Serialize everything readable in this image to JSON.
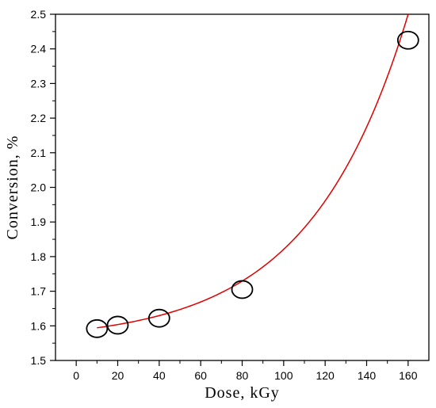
{
  "chart_data": {
    "type": "scatter",
    "title": "",
    "xlabel": "Dose, kGy",
    "ylabel": "Conversion, %",
    "xlim": [
      -10,
      170
    ],
    "ylim": [
      1.5,
      2.5
    ],
    "xticks": [
      0,
      20,
      40,
      60,
      80,
      100,
      120,
      140,
      160
    ],
    "yticks": [
      1.5,
      1.6,
      1.7,
      1.8,
      1.9,
      2.0,
      2.1,
      2.2,
      2.3,
      2.4,
      2.5
    ],
    "ytick_labels": [
      "1.5",
      "1.6",
      "1.7",
      "1.8",
      "1.9",
      "2.0",
      "2.1",
      "2.2",
      "2.3",
      "2.4",
      "2.5"
    ],
    "grid": false,
    "series": [
      {
        "marker": "open-circle",
        "color": "#000000",
        "x": [
          10,
          20,
          40,
          80,
          160
        ],
        "y": [
          1.592,
          1.602,
          1.622,
          1.705,
          2.425
        ]
      }
    ],
    "fit": {
      "type": "exponential",
      "color": "#e00000",
      "x_range": [
        10,
        160
      ],
      "model": "y = 1.5544 + 0.03233 * exp(x / 47.4)"
    }
  }
}
